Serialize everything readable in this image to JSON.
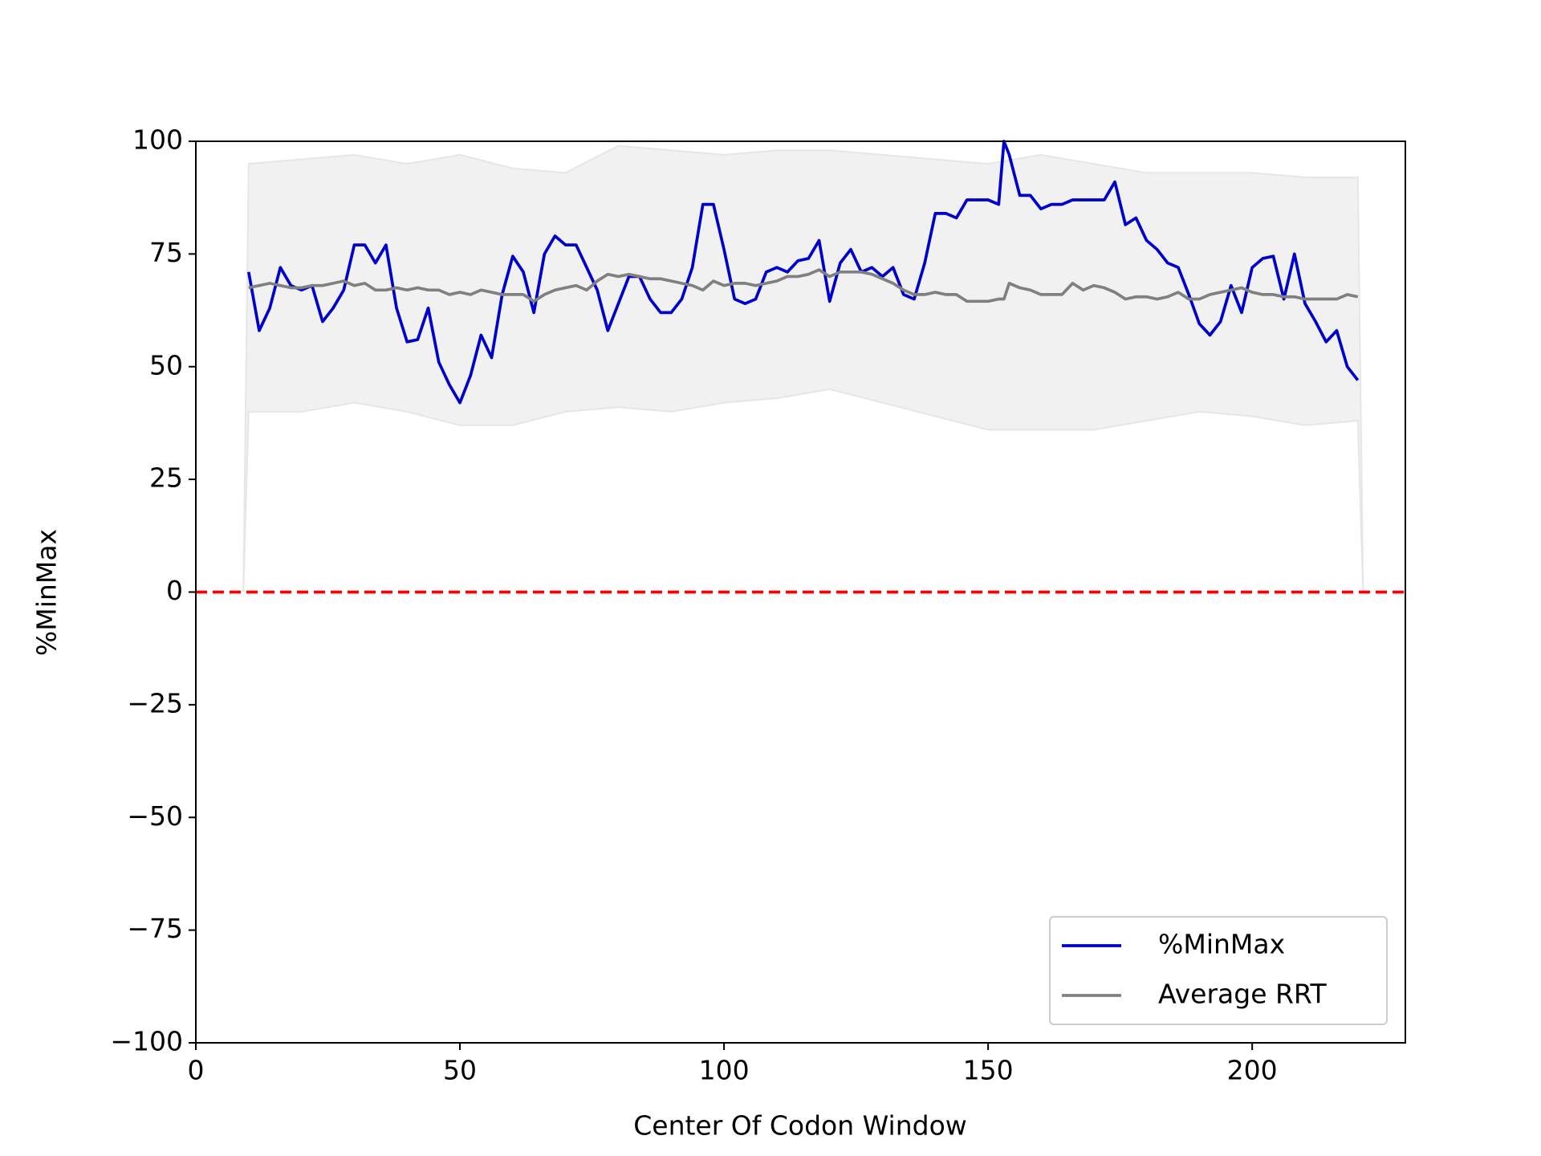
{
  "chart_data": {
    "type": "line",
    "x_label": "Center Of Codon Window",
    "y_label": "%MinMax",
    "xlim": [
      0,
      229
    ],
    "ylim": [
      -100,
      100
    ],
    "xticks": [
      0,
      50,
      100,
      150,
      200
    ],
    "yticks": [
      {
        "value": -100,
        "label": "−100"
      },
      {
        "value": -75,
        "label": "−75"
      },
      {
        "value": -50,
        "label": "−50"
      },
      {
        "value": -25,
        "label": "−25"
      },
      0,
      25,
      50,
      75,
      100
    ],
    "legend": "lower right",
    "hline": {
      "value": 0,
      "color": "#ff0000"
    },
    "band": {
      "color": "#f1f1f1",
      "x": [
        9,
        10,
        20,
        30,
        40,
        50,
        60,
        70,
        80,
        90,
        100,
        110,
        120,
        130,
        140,
        150,
        160,
        170,
        180,
        190,
        200,
        210,
        220,
        221
      ],
      "upper": [
        0,
        95,
        96,
        97,
        95,
        97,
        94,
        93,
        99,
        98,
        97,
        98,
        98,
        97,
        96,
        95,
        97,
        95,
        93,
        93,
        93,
        92,
        92,
        0
      ],
      "lower": [
        0,
        40,
        40,
        42,
        40,
        37,
        37,
        40,
        41,
        40,
        42,
        43,
        45,
        42,
        39,
        36,
        36,
        36,
        38,
        40,
        39,
        37,
        38,
        0
      ]
    },
    "x": [
      10,
      12,
      14,
      16,
      18,
      20,
      22,
      24,
      26,
      28,
      30,
      32,
      34,
      36,
      38,
      40,
      42,
      44,
      46,
      48,
      50,
      52,
      54,
      56,
      58,
      60,
      62,
      64,
      66,
      68,
      70,
      72,
      74,
      76,
      78,
      80,
      82,
      84,
      86,
      88,
      90,
      92,
      94,
      96,
      98,
      100,
      102,
      104,
      106,
      108,
      110,
      112,
      114,
      116,
      118,
      120,
      122,
      124,
      126,
      128,
      130,
      132,
      134,
      136,
      138,
      140,
      142,
      144,
      146,
      148,
      150,
      152,
      153,
      154,
      156,
      158,
      160,
      162,
      164,
      166,
      168,
      170,
      172,
      174,
      176,
      178,
      180,
      182,
      184,
      186,
      188,
      190,
      192,
      194,
      196,
      198,
      200,
      202,
      204,
      206,
      208,
      210,
      212,
      214,
      216,
      218,
      220
    ],
    "series": [
      {
        "name": "%MinMax",
        "color": "#0000cc",
        "values": [
          71,
          58,
          63,
          72,
          68,
          67,
          68,
          60,
          63,
          67,
          77,
          77,
          73,
          77,
          63,
          55.5,
          56,
          63,
          51,
          46,
          42,
          48,
          57,
          52,
          66,
          74.5,
          71,
          62,
          75,
          79,
          77,
          77,
          72,
          67,
          58,
          64,
          70,
          70,
          65,
          62,
          62,
          65,
          72,
          86,
          86,
          76,
          65,
          64,
          65,
          71,
          72,
          71,
          73.5,
          74,
          78,
          64.5,
          73,
          76,
          71,
          72,
          70,
          72,
          66,
          65,
          73,
          84,
          84,
          83,
          87,
          87,
          87,
          86,
          100,
          97,
          88,
          88,
          85,
          86,
          86,
          87,
          87,
          87,
          87,
          91,
          81.5,
          83,
          78,
          76,
          73,
          72,
          66,
          59.5,
          57,
          60,
          68,
          62,
          72,
          74,
          74.5,
          65,
          75,
          64,
          60,
          55.5,
          58,
          50,
          47
        ]
      },
      {
        "name": "Average RRT",
        "color": "#808080",
        "values": [
          67.5,
          68,
          68.5,
          68,
          67.5,
          67.5,
          68,
          68,
          68.5,
          69,
          68,
          68.5,
          67,
          67,
          67.5,
          67,
          67.5,
          67,
          67,
          66,
          66.5,
          66,
          67,
          66.5,
          66,
          66,
          66,
          64.5,
          66,
          67,
          67.5,
          68,
          67,
          69,
          70.5,
          70,
          70.5,
          70,
          69.5,
          69.5,
          69,
          68.5,
          68,
          67,
          69,
          68,
          68.5,
          68.5,
          68,
          68.5,
          69,
          70,
          70,
          70.5,
          71.5,
          70,
          71,
          71,
          71,
          70.5,
          69.5,
          68.5,
          67,
          66,
          66,
          66.5,
          66,
          66,
          64.5,
          64.5,
          64.5,
          65,
          65,
          68.5,
          67.5,
          67,
          66,
          66,
          66,
          68.5,
          67,
          68,
          67.5,
          66.5,
          65,
          65.5,
          65.5,
          65,
          65.5,
          66.5,
          65,
          65,
          66,
          66.5,
          67,
          67.5,
          66.5,
          66,
          66,
          65.5,
          65.5,
          65,
          65,
          65,
          65,
          66,
          65.5
        ]
      }
    ]
  }
}
